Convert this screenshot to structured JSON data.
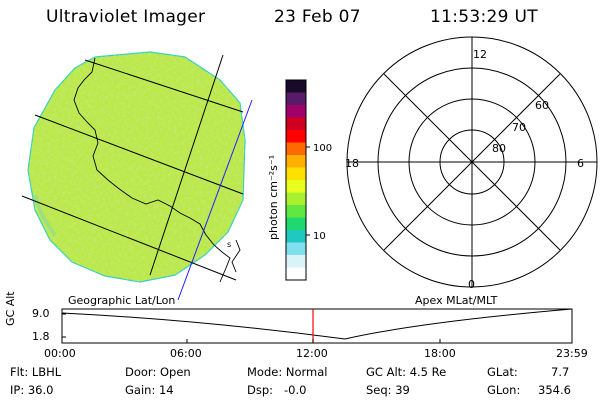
{
  "header": {
    "instrument": "Ultraviolet Imager",
    "date": "23 Feb 07",
    "time": "11:53:29 UT"
  },
  "colorbar": {
    "unit_label": "photon cm⁻²s⁻¹",
    "ticks": [
      {
        "value": 100,
        "label": "100"
      },
      {
        "value": 10,
        "label": "10"
      }
    ],
    "colors_top_to_bottom": [
      "#1a0a2a",
      "#5a1a6a",
      "#a0006a",
      "#d00020",
      "#ff0000",
      "#ff6a00",
      "#ffb000",
      "#ffe000",
      "#e8ff20",
      "#a8f030",
      "#60e840",
      "#20d870",
      "#20c8c0",
      "#80e0f0",
      "#d8f4f8",
      "#ffffff"
    ]
  },
  "map_panel": {
    "label": "Geographic Lat/Lon",
    "fill_color": "#bde84a",
    "coast_labels": [
      "s"
    ]
  },
  "polar_panel": {
    "label": "Apex MLat/MLT",
    "mlt_labels": {
      "top": "12",
      "bottom": "0",
      "left": "18",
      "right": "6"
    },
    "lat_labels": [
      "60",
      "70",
      "80"
    ]
  },
  "altitude_plot": {
    "ylabel": "GC Alt",
    "yticks": [
      "9.0",
      "1.8"
    ],
    "xticks": [
      "00:00",
      "06:00",
      "12:00",
      "18:00",
      "23:59"
    ],
    "marker_time": "11:53:29",
    "marker_color": "#ff0000"
  },
  "info": {
    "row1": {
      "flt": "Flt: LBHL",
      "door": "Door: Open",
      "mode": "Mode: Normal",
      "gcalt": "GC Alt: 4.5 Re",
      "glat_label": "GLat:",
      "glat_value": "7.7"
    },
    "row2": {
      "ip": "IP: 36.0",
      "gain": "Gain: 14",
      "dsp": "Dsp:   -0.0",
      "seq": "Seq: 39",
      "glon_label": "GLon:",
      "glon_value": "354.6"
    }
  }
}
